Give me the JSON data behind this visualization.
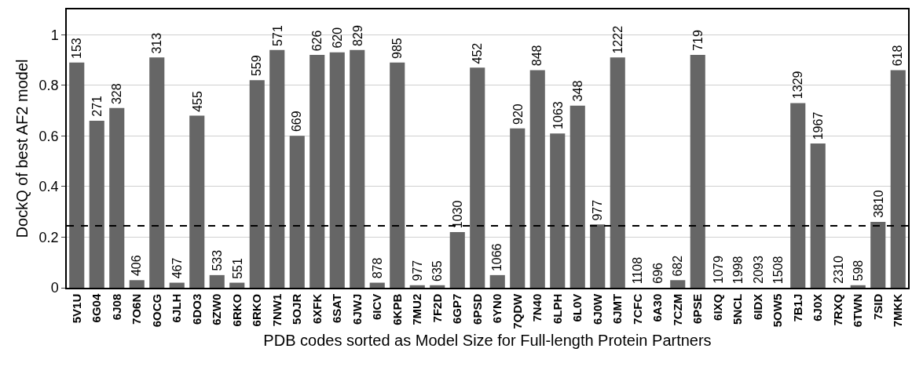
{
  "chart_data": {
    "type": "bar",
    "xlabel": "PDB codes sorted as Model Size for Full-length Protein Partners",
    "ylabel": "DockQ of best AF2 model",
    "categories": [
      "5V1U",
      "6G04",
      "6J08",
      "7O6N",
      "6OCG",
      "6JLH",
      "6DO3",
      "6ZW0",
      "6RKO",
      "6RKO",
      "7NW1",
      "5OJR",
      "6XFK",
      "6SAT",
      "6JWJ",
      "6ICV",
      "6KPB",
      "7MU2",
      "7F2D",
      "6GP7",
      "6PSD",
      "6YN0",
      "7QDW",
      "7N40",
      "6LPH",
      "6L0V",
      "6J0W",
      "6JMT",
      "7CFC",
      "6A30",
      "7CZM",
      "6PSE",
      "6IXQ",
      "5NCL",
      "6IDX",
      "5OW5",
      "7B1J",
      "6J0X",
      "7RXQ",
      "6TWN",
      "7SID",
      "7MKK"
    ],
    "values": [
      0.89,
      0.66,
      0.71,
      0.03,
      0.91,
      0.02,
      0.68,
      0.05,
      0.02,
      0.82,
      0.94,
      0.6,
      0.92,
      0.93,
      0.94,
      0.02,
      0.89,
      0.01,
      0.01,
      0.22,
      0.87,
      0.05,
      0.63,
      0.86,
      0.61,
      0.72,
      0.25,
      0.91,
      0,
      0,
      0.03,
      0.92,
      0,
      0,
      0,
      0,
      0.73,
      0.57,
      0,
      0.01,
      0.26,
      0.86
    ],
    "annotations": [
      {
        "text": "153",
        "x": "5V1U",
        "y": 0.89
      },
      {
        "text": "271",
        "x": "6G04",
        "y": 0.66
      },
      {
        "text": "328",
        "x": "6J08",
        "y": 0.71
      },
      {
        "text": "406",
        "x": "7O6N",
        "y": 0.03
      },
      {
        "text": "313",
        "x": "6OCG",
        "y": 0.91
      },
      {
        "text": "467",
        "x": "6JLH",
        "y": 0.02
      },
      {
        "text": "455",
        "x": "6DO3",
        "y": 0.68
      },
      {
        "text": "533",
        "x": "6ZW0",
        "y": 0.05
      },
      {
        "text": "551",
        "x": "6RKO",
        "y": 0.02
      },
      "559",
      {
        "text": "571",
        "x": "7NW1",
        "y": 0.94
      },
      {
        "text": "669",
        "x": "5OJR",
        "y": 0.6
      },
      {
        "text": "626",
        "x": "6XFK",
        "y": 0.92
      },
      {
        "text": "620",
        "x": "6SAT",
        "y": 0.93
      },
      {
        "text": "829",
        "x": "6JWJ",
        "y": 0.94
      },
      {
        "text": "878",
        "x": "6ICV",
        "y": 0.02
      },
      {
        "text": "985",
        "x": "6KPB",
        "y": 0.89
      },
      {
        "text": "977",
        "x": "7MU2",
        "y": 0.01
      },
      {
        "text": "635",
        "x": "7F2D",
        "y": 0.01
      },
      {
        "text": "1030",
        "x": "6GP7",
        "y": 0.22
      },
      {
        "text": "452",
        "x": "6PSD",
        "y": 0.87
      },
      {
        "text": "1066",
        "x": "6YN0",
        "y": 0.05
      },
      {
        "text": "920",
        "x": "7QDW",
        "y": 0.63
      },
      {
        "text": "848",
        "x": "7N40",
        "y": 0.86
      },
      {
        "text": "1063",
        "x": "6LPH",
        "y": 0.61
      },
      {
        "text": "348",
        "x": "6L0V",
        "y": 0.72
      },
      {
        "text": "977",
        "x": "6J0W",
        "y": 0.25
      },
      {
        "text": "1222",
        "x": "6JMT",
        "y": 0.91
      },
      {
        "text": "1108",
        "x": "7CFC",
        "y": 0
      },
      {
        "text": "696",
        "x": "6A30",
        "y": 0
      },
      {
        "text": "682",
        "x": "7CZM",
        "y": 0.03
      },
      {
        "text": "719",
        "x": "6PSE",
        "y": 0.92
      },
      {
        "text": "1079",
        "x": "6IXQ",
        "y": 0
      },
      {
        "text": "1998",
        "x": "5NCL",
        "y": 0
      },
      {
        "text": "2093",
        "x": "6IDX",
        "y": 0
      },
      {
        "text": "1508",
        "x": "5OW5",
        "y": 0
      },
      {
        "text": "1329",
        "x": "7B1J",
        "y": 0.73
      },
      {
        "text": "1967",
        "x": "6J0X",
        "y": 0.57
      },
      {
        "text": "2310",
        "x": "7RXQ",
        "y": 0
      },
      {
        "text": "598",
        "x": "6TWN",
        "y": 0.01
      },
      {
        "text": "3810",
        "x": "7SID",
        "y": 0.26
      },
      {
        "text": "618",
        "x": "7MKK",
        "y": 0.86
      }
    ],
    "color": "#666666",
    "ylim": [
      0,
      1.1
    ],
    "yticks": [
      0,
      0.2,
      0.4,
      0.6,
      0.8,
      1
    ],
    "grid": "y",
    "ref_lines": [
      {
        "axis": "y",
        "value": 0.245,
        "color": "#000000",
        "line_style": "dashed"
      }
    ]
  }
}
